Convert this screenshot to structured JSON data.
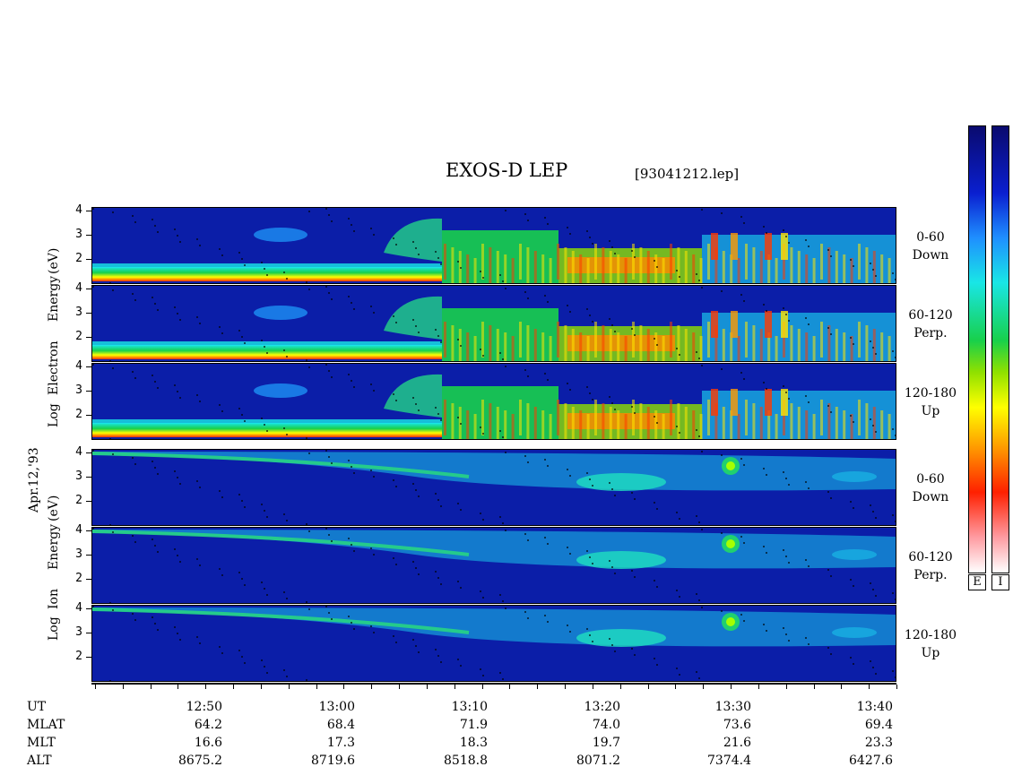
{
  "title": "EXOS-D LEP",
  "file": "[93041212.lep]",
  "date_label": "Apr.12,'93",
  "electron_axis": [
    "Log",
    "Electron",
    "Energy",
    "(eV)"
  ],
  "ion_axis": [
    "Log",
    "Ion",
    "Energy",
    "(eV)"
  ],
  "panels": [
    {
      "species": "electron",
      "pitch": "0-60",
      "dir": "Down"
    },
    {
      "species": "electron",
      "pitch": "60-120",
      "dir": "Perp."
    },
    {
      "species": "electron",
      "pitch": "120-180",
      "dir": "Up"
    },
    {
      "species": "ion",
      "pitch": "0-60",
      "dir": "Down"
    },
    {
      "species": "ion",
      "pitch": "60-120",
      "dir": "Perp."
    },
    {
      "species": "ion",
      "pitch": "120-180",
      "dir": "Up"
    }
  ],
  "y_ticks": [
    "4",
    "3",
    "2"
  ],
  "colorbar_labels": [
    "E",
    "I"
  ],
  "chart_data": {
    "type": "heatmap",
    "title": "EXOS-D LEP",
    "ylabel": "Log Energy (eV)",
    "ylim": [
      1,
      4
    ],
    "x_ticks": [
      "12:50",
      "13:00",
      "13:10",
      "13:20",
      "13:30",
      "13:40"
    ],
    "rows": {
      "UT": [
        "12:50",
        "13:00",
        "13:10",
        "13:20",
        "13:30",
        "13:40"
      ],
      "MLAT": [
        "64.2",
        "68.4",
        "71.9",
        "74.0",
        "73.6",
        "69.4"
      ],
      "MLT": [
        "16.6",
        "17.3",
        "18.3",
        "19.7",
        "21.6",
        "23.3"
      ],
      "ALT": [
        "8675.2",
        "8719.6",
        "8518.8",
        "8071.2",
        "7374.4",
        "6427.6"
      ]
    }
  },
  "row_heads": [
    "UT",
    "MLAT",
    "MLT",
    "ALT"
  ]
}
